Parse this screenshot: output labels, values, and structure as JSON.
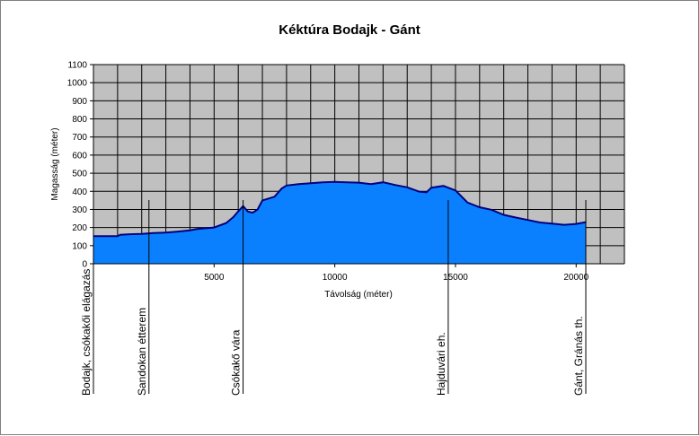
{
  "chart_data": {
    "type": "area",
    "title": "Kéktúra Bodajk - Gánt",
    "xlabel": "Távolság (méter)",
    "ylabel": "Magasság (méter)",
    "xlim": [
      0,
      22000
    ],
    "ylim": [
      0,
      1100
    ],
    "x_ticks": [
      5000,
      10000,
      15000,
      20000
    ],
    "y_ticks": [
      0,
      100,
      200,
      300,
      400,
      500,
      600,
      700,
      800,
      900,
      1000,
      1100
    ],
    "grid": true,
    "colors": {
      "fill": "#0a80ff",
      "line": "#000080",
      "plot_bg": "#c0c0c0",
      "grid": "#000000"
    },
    "series": [
      {
        "x": [
          0,
          1000,
          1100,
          1500,
          2000,
          2300,
          2500,
          3000,
          3500,
          4000,
          4300,
          5000,
          5500,
          5800,
          6000,
          6200,
          6400,
          6600,
          6800,
          7000,
          7500,
          7800,
          8000,
          8500,
          9000,
          9500,
          10000,
          10500,
          11000,
          11500,
          12000,
          12500,
          13000,
          13500,
          13800,
          14000,
          14500,
          15000,
          15500,
          16000,
          16500,
          17000,
          17500,
          18000,
          18500,
          19000,
          19500,
          20000,
          20400
        ],
        "values": [
          152,
          152,
          160,
          163,
          165,
          168,
          170,
          172,
          178,
          185,
          192,
          200,
          225,
          258,
          290,
          318,
          288,
          282,
          300,
          350,
          370,
          415,
          432,
          440,
          445,
          450,
          452,
          450,
          448,
          440,
          450,
          435,
          422,
          398,
          395,
          420,
          430,
          405,
          338,
          312,
          298,
          270,
          255,
          242,
          228,
          222,
          215,
          220,
          230
        ]
      }
    ],
    "annotations": [
      {
        "label": "Bodajk, csókakői elágazás",
        "x": 0
      },
      {
        "label": "Sandokan étterem",
        "x": 2300
      },
      {
        "label": "Csókakő vára",
        "x": 6200
      },
      {
        "label": "Hajduvári eh.",
        "x": 14700
      },
      {
        "label": "Gánt, Gránás th.",
        "x": 20400
      }
    ]
  }
}
